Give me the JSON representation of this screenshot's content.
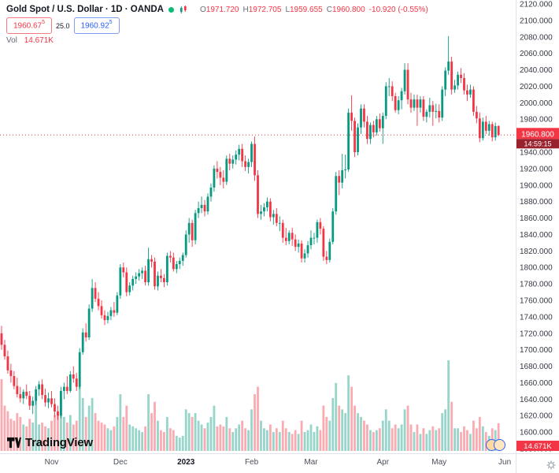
{
  "header": {
    "title": "Gold Spot / U.S. Dollar · 1D · OANDA",
    "ohlc": {
      "o_label": "O",
      "o": "1971.720",
      "h_label": "H",
      "h": "1972.705",
      "l_label": "L",
      "l": "1959.655",
      "c_label": "C",
      "c": "1960.800",
      "change": "-10.920 (-0.55%)"
    },
    "bid": "1960.67",
    "bid_sup": "5",
    "spread": "25.0",
    "ask": "1960.92",
    "ask_sup": "5",
    "vol_label": "Vol",
    "vol_value": "14.671K"
  },
  "footer": {
    "logo_text": "TradingView"
  },
  "chart_data": {
    "type": "candlestick",
    "symbol": "Gold Spot / U.S. Dollar",
    "interval": "1D",
    "exchange": "OANDA",
    "ylim": [
      1580,
      2120
    ],
    "price_axis": {
      "max": 2120,
      "min": 1580,
      "step": 20
    },
    "slots": 165,
    "time_ticks": [
      {
        "label": "Nov",
        "i": 16
      },
      {
        "label": "Dec",
        "i": 38
      },
      {
        "label": "2023",
        "i": 59,
        "major": true
      },
      {
        "label": "Feb",
        "i": 80
      },
      {
        "label": "Mar",
        "i": 99
      },
      {
        "label": "Apr",
        "i": 122
      },
      {
        "label": "May",
        "i": 140
      },
      {
        "label": "Jun",
        "i": 161
      }
    ],
    "colors": {
      "up": "#089981",
      "down": "#f23645",
      "countdown_bg": "#99212e"
    },
    "last": {
      "price": 1960.8,
      "label": "1960.800",
      "countdown": "14:59:15",
      "volume_axis_label": "14.671K"
    },
    "candles": [
      [
        1720,
        1729,
        1700,
        1706,
        38
      ],
      [
        1706,
        1712,
        1688,
        1692,
        24
      ],
      [
        1692,
        1699,
        1671,
        1675,
        21
      ],
      [
        1675,
        1683,
        1660,
        1668,
        17
      ],
      [
        1668,
        1674,
        1652,
        1656,
        16
      ],
      [
        1656,
        1666,
        1642,
        1646,
        20
      ],
      [
        1646,
        1655,
        1636,
        1641,
        18
      ],
      [
        1641,
        1652,
        1634,
        1649,
        14
      ],
      [
        1649,
        1658,
        1640,
        1644,
        13
      ],
      [
        1644,
        1650,
        1627,
        1632,
        17
      ],
      [
        1632,
        1643,
        1622,
        1638,
        15
      ],
      [
        1638,
        1656,
        1633,
        1652,
        30
      ],
      [
        1652,
        1662,
        1644,
        1658,
        14
      ],
      [
        1658,
        1664,
        1640,
        1645,
        15
      ],
      [
        1645,
        1653,
        1631,
        1636,
        13
      ],
      [
        1636,
        1648,
        1629,
        1641,
        12
      ],
      [
        1641,
        1650,
        1630,
        1634,
        16
      ],
      [
        1634,
        1641,
        1618,
        1625,
        19
      ],
      [
        1625,
        1632,
        1615,
        1620,
        21
      ],
      [
        1620,
        1655,
        1617,
        1650,
        28
      ],
      [
        1650,
        1660,
        1640,
        1655,
        18
      ],
      [
        1655,
        1668,
        1646,
        1650,
        15
      ],
      [
        1650,
        1674,
        1648,
        1670,
        19
      ],
      [
        1670,
        1680,
        1660,
        1665,
        14
      ],
      [
        1665,
        1672,
        1650,
        1655,
        16
      ],
      [
        1655,
        1702,
        1652,
        1697,
        34
      ],
      [
        1697,
        1726,
        1694,
        1721,
        28
      ],
      [
        1721,
        1732,
        1710,
        1715,
        18
      ],
      [
        1715,
        1755,
        1712,
        1750,
        24
      ],
      [
        1750,
        1786,
        1746,
        1775,
        28
      ],
      [
        1775,
        1782,
        1758,
        1762,
        20
      ],
      [
        1762,
        1770,
        1748,
        1753,
        16
      ],
      [
        1753,
        1760,
        1738,
        1742,
        15
      ],
      [
        1742,
        1748,
        1730,
        1736,
        14
      ],
      [
        1736,
        1746,
        1732,
        1741,
        12
      ],
      [
        1741,
        1752,
        1736,
        1748,
        11
      ],
      [
        1748,
        1758,
        1740,
        1745,
        13
      ],
      [
        1745,
        1770,
        1742,
        1766,
        18
      ],
      [
        1766,
        1804,
        1762,
        1800,
        30
      ],
      [
        1800,
        1806,
        1788,
        1794,
        18
      ],
      [
        1794,
        1800,
        1765,
        1770,
        24
      ],
      [
        1770,
        1782,
        1766,
        1778,
        14
      ],
      [
        1778,
        1790,
        1772,
        1786,
        13
      ],
      [
        1786,
        1794,
        1780,
        1789,
        12
      ],
      [
        1789,
        1798,
        1784,
        1793,
        11
      ],
      [
        1793,
        1800,
        1786,
        1796,
        10
      ],
      [
        1796,
        1802,
        1778,
        1782,
        13
      ],
      [
        1782,
        1824,
        1778,
        1810,
        30
      ],
      [
        1810,
        1815,
        1800,
        1807,
        20
      ],
      [
        1807,
        1812,
        1773,
        1777,
        26
      ],
      [
        1777,
        1795,
        1772,
        1790,
        16
      ],
      [
        1790,
        1798,
        1782,
        1787,
        11
      ],
      [
        1787,
        1792,
        1776,
        1782,
        10
      ],
      [
        1782,
        1818,
        1778,
        1814,
        18
      ],
      [
        1814,
        1820,
        1806,
        1812,
        12
      ],
      [
        1812,
        1818,
        1795,
        1798,
        11
      ],
      [
        1798,
        1808,
        1793,
        1804,
        8
      ],
      [
        1804,
        1812,
        1798,
        1808,
        7
      ],
      [
        1808,
        1818,
        1802,
        1815,
        8
      ],
      [
        1815,
        1845,
        1812,
        1840,
        22
      ],
      [
        1840,
        1860,
        1830,
        1854,
        20
      ],
      [
        1854,
        1858,
        1825,
        1833,
        18
      ],
      [
        1833,
        1870,
        1828,
        1866,
        20
      ],
      [
        1866,
        1880,
        1860,
        1872,
        16
      ],
      [
        1872,
        1886,
        1866,
        1876,
        14
      ],
      [
        1876,
        1882,
        1862,
        1868,
        12
      ],
      [
        1868,
        1890,
        1864,
        1886,
        15
      ],
      [
        1886,
        1902,
        1880,
        1897,
        18
      ],
      [
        1897,
        1924,
        1892,
        1920,
        24
      ],
      [
        1920,
        1929,
        1908,
        1916,
        13
      ],
      [
        1916,
        1922,
        1900,
        1909,
        14
      ],
      [
        1909,
        1918,
        1896,
        1904,
        13
      ],
      [
        1904,
        1936,
        1900,
        1932,
        18
      ],
      [
        1932,
        1938,
        1918,
        1926,
        12
      ],
      [
        1926,
        1936,
        1920,
        1931,
        10
      ],
      [
        1931,
        1942,
        1925,
        1937,
        12
      ],
      [
        1937,
        1949,
        1930,
        1944,
        14
      ],
      [
        1944,
        1950,
        1922,
        1929,
        16
      ],
      [
        1929,
        1936,
        1917,
        1922,
        12
      ],
      [
        1922,
        1932,
        1914,
        1928,
        11
      ],
      [
        1928,
        1953,
        1922,
        1950,
        22
      ],
      [
        1950,
        1959,
        1905,
        1912,
        30
      ],
      [
        1912,
        1918,
        1860,
        1865,
        34
      ],
      [
        1865,
        1876,
        1858,
        1868,
        16
      ],
      [
        1868,
        1878,
        1862,
        1873,
        12
      ],
      [
        1873,
        1885,
        1868,
        1880,
        11
      ],
      [
        1880,
        1884,
        1856,
        1861,
        14
      ],
      [
        1861,
        1870,
        1852,
        1865,
        10
      ],
      [
        1865,
        1872,
        1850,
        1854,
        12
      ],
      [
        1854,
        1862,
        1844,
        1854,
        10
      ],
      [
        1854,
        1858,
        1830,
        1836,
        16
      ],
      [
        1836,
        1848,
        1827,
        1832,
        12
      ],
      [
        1832,
        1845,
        1828,
        1842,
        10
      ],
      [
        1842,
        1848,
        1826,
        1834,
        9
      ],
      [
        1834,
        1840,
        1820,
        1825,
        11
      ],
      [
        1825,
        1834,
        1818,
        1829,
        9
      ],
      [
        1829,
        1833,
        1806,
        1811,
        16
      ],
      [
        1811,
        1822,
        1806,
        1817,
        10
      ],
      [
        1817,
        1832,
        1812,
        1827,
        11
      ],
      [
        1827,
        1845,
        1822,
        1836,
        14
      ],
      [
        1836,
        1842,
        1828,
        1836,
        10
      ],
      [
        1836,
        1858,
        1830,
        1855,
        13
      ],
      [
        1855,
        1860,
        1840,
        1847,
        11
      ],
      [
        1847,
        1850,
        1808,
        1813,
        24
      ],
      [
        1813,
        1820,
        1804,
        1809,
        18
      ],
      [
        1809,
        1835,
        1806,
        1831,
        16
      ],
      [
        1831,
        1872,
        1828,
        1868,
        28
      ],
      [
        1868,
        1916,
        1864,
        1911,
        36
      ],
      [
        1911,
        1918,
        1888,
        1903,
        24
      ],
      [
        1903,
        1938,
        1896,
        1918,
        22
      ],
      [
        1918,
        1937,
        1908,
        1919,
        20
      ],
      [
        1919,
        1993,
        1916,
        1988,
        40
      ],
      [
        1988,
        2009,
        1966,
        1978,
        34
      ],
      [
        1978,
        1982,
        1934,
        1940,
        24
      ],
      [
        1940,
        1975,
        1936,
        1970,
        20
      ],
      [
        1970,
        1998,
        1962,
        1993,
        18
      ],
      [
        1993,
        1998,
        1970,
        1977,
        16
      ],
      [
        1977,
        1984,
        1950,
        1956,
        14
      ],
      [
        1956,
        1976,
        1950,
        1973,
        11
      ],
      [
        1973,
        1978,
        1958,
        1964,
        10
      ],
      [
        1964,
        1984,
        1960,
        1980,
        11
      ],
      [
        1980,
        1987,
        1965,
        1969,
        12
      ],
      [
        1969,
        1988,
        1950,
        1984,
        16
      ],
      [
        1984,
        2025,
        1980,
        2020,
        22
      ],
      [
        2020,
        2030,
        2008,
        2020,
        16
      ],
      [
        2020,
        2026,
        2002,
        2008,
        12
      ],
      [
        2008,
        2012,
        1988,
        1991,
        14
      ],
      [
        1991,
        2008,
        1986,
        2003,
        12
      ],
      [
        2003,
        2018,
        1992,
        2014,
        14
      ],
      [
        2014,
        2048,
        2010,
        2040,
        22
      ],
      [
        2040,
        2048,
        1998,
        2004,
        24
      ],
      [
        2004,
        2012,
        1988,
        1994,
        14
      ],
      [
        1994,
        2010,
        1990,
        2004,
        10
      ],
      [
        2004,
        2010,
        1972,
        1994,
        14
      ],
      [
        1994,
        2008,
        1988,
        2004,
        9
      ],
      [
        2004,
        2008,
        1978,
        1983,
        12
      ],
      [
        1983,
        1992,
        1976,
        1989,
        9
      ],
      [
        1989,
        2006,
        1982,
        1997,
        11
      ],
      [
        1997,
        2002,
        1972,
        1989,
        13
      ],
      [
        1989,
        1999,
        1981,
        1990,
        11
      ],
      [
        1990,
        1998,
        1976,
        1982,
        12
      ],
      [
        1982,
        2020,
        1978,
        2016,
        20
      ],
      [
        2016,
        2043,
        2008,
        2039,
        22
      ],
      [
        2039,
        2081,
        2034,
        2050,
        48
      ],
      [
        2050,
        2056,
        2010,
        2016,
        26
      ],
      [
        2016,
        2028,
        2012,
        2021,
        12
      ],
      [
        2021,
        2038,
        2016,
        2034,
        12
      ],
      [
        2034,
        2042,
        2024,
        2030,
        10
      ],
      [
        2030,
        2036,
        2010,
        2015,
        13
      ],
      [
        2015,
        2022,
        2002,
        2010,
        11
      ],
      [
        2010,
        2022,
        2006,
        2016,
        9
      ],
      [
        2016,
        2020,
        1984,
        1989,
        16
      ],
      [
        1989,
        1996,
        1975,
        1981,
        12
      ],
      [
        1981,
        1988,
        1952,
        1957,
        18
      ],
      [
        1957,
        1982,
        1954,
        1977,
        13
      ],
      [
        1977,
        1984,
        1962,
        1966,
        10
      ],
      [
        1966,
        1978,
        1960,
        1974,
        8
      ],
      [
        1974,
        1977,
        1953,
        1958,
        12
      ],
      [
        1958,
        1976,
        1954,
        1971.72,
        11
      ],
      [
        1971.72,
        1972.705,
        1959.655,
        1960.8,
        14.671
      ]
    ]
  }
}
